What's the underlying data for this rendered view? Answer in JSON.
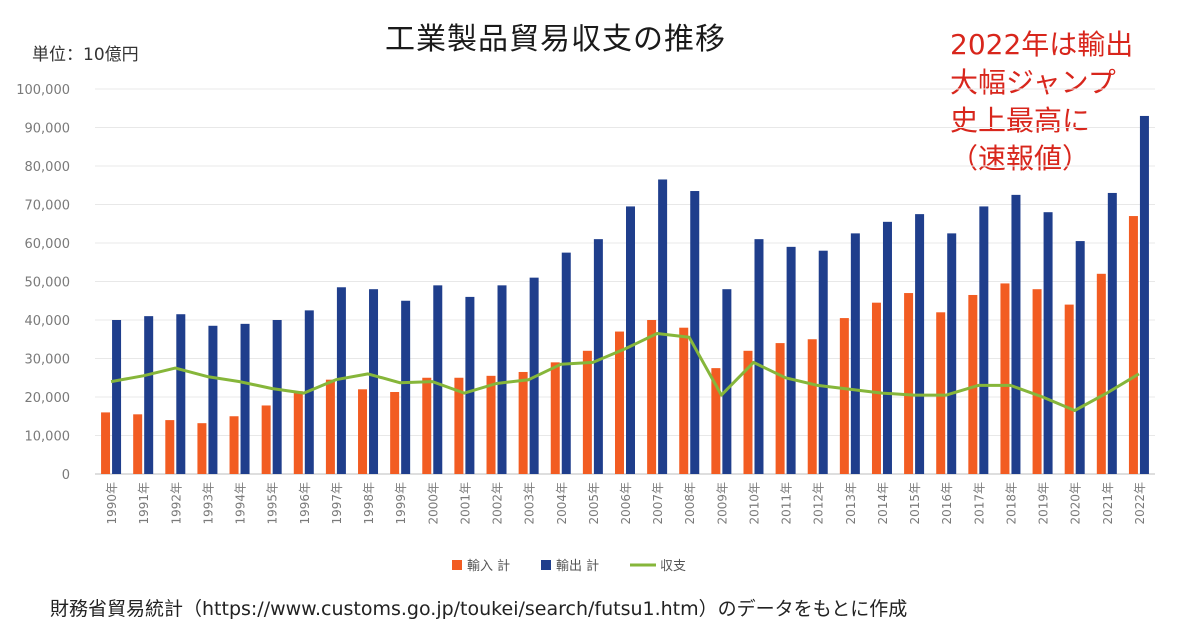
{
  "chart_data": {
    "type": "bar",
    "title": "工業製品貿易収支の推移",
    "unit_label": "単位：10億円",
    "categories": [
      "1990年",
      "1991年",
      "1992年",
      "1993年",
      "1994年",
      "1995年",
      "1996年",
      "1997年",
      "1998年",
      "1999年",
      "2000年",
      "2001年",
      "2002年",
      "2003年",
      "2004年",
      "2005年",
      "2006年",
      "2007年",
      "2008年",
      "2009年",
      "2010年",
      "2011年",
      "2012年",
      "2013年",
      "2014年",
      "2015年",
      "2016年",
      "2017年",
      "2018年",
      "2019年",
      "2020年",
      "2021年",
      "2022年"
    ],
    "series": [
      {
        "name": "輸入 計",
        "kind": "bar",
        "color": "#f25c22",
        "values": [
          16000,
          15500,
          14000,
          13200,
          15000,
          17800,
          21500,
          24500,
          22000,
          21300,
          25000,
          25000,
          25500,
          26500,
          29000,
          32000,
          37000,
          40000,
          38000,
          27500,
          32000,
          34000,
          35000,
          40500,
          44500,
          47000,
          42000,
          46500,
          49500,
          48000,
          44000,
          52000,
          67000
        ]
      },
      {
        "name": "輸出 計",
        "kind": "bar",
        "color": "#1f3e8c",
        "values": [
          40000,
          41000,
          41500,
          38500,
          39000,
          40000,
          42500,
          48500,
          48000,
          45000,
          49000,
          46000,
          49000,
          51000,
          57500,
          61000,
          69500,
          76500,
          73500,
          48000,
          61000,
          59000,
          58000,
          62500,
          65500,
          67500,
          62500,
          69500,
          72500,
          68000,
          60500,
          73000,
          93000
        ]
      },
      {
        "name": "収支",
        "kind": "line",
        "color": "#86b63a",
        "values": [
          24000,
          25500,
          27500,
          25300,
          24000,
          22200,
          21000,
          24500,
          26000,
          23700,
          24000,
          21000,
          23500,
          24500,
          28500,
          29000,
          32500,
          36500,
          35500,
          20500,
          29000,
          25000,
          23000,
          22000,
          21000,
          20500,
          20500,
          23000,
          23000,
          20000,
          16500,
          21000,
          26000
        ]
      }
    ],
    "yticks": [
      "0",
      "10,000",
      "20,000",
      "30,000",
      "40,000",
      "50,000",
      "60,000",
      "70,000",
      "80,000",
      "90,000",
      "100,000"
    ],
    "ylim": [
      0,
      100000
    ],
    "grid": true,
    "legend_position": "bottom"
  },
  "annotation": "2022年は輸出\n大幅ジャンプ\n史上最高に\n（速報値）",
  "source": "財務省貿易統計（https://www.customs.go.jp/toukei/search/futsu1.htm）のデータをもとに作成"
}
